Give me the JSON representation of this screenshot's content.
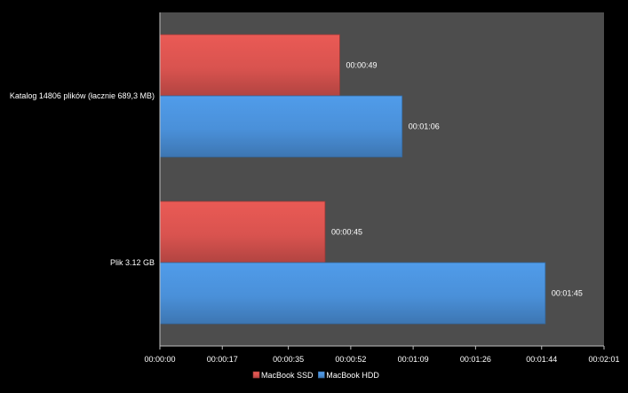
{
  "chart_data": {
    "type": "bar",
    "orientation": "horizontal",
    "categories": [
      "Katalog 14806 plików (łacznie 689,3 MB)",
      "Plik 3.12 GB"
    ],
    "series": [
      {
        "name": "MacBook SSD",
        "values": [
          49,
          45
        ],
        "value_labels": [
          "00:00:49",
          "00:00:45"
        ],
        "color": "#d9534f"
      },
      {
        "name": "MacBook HDD",
        "values": [
          66,
          105
        ],
        "value_labels": [
          "00:01:06",
          "00:01:45"
        ],
        "color": "#4a90d9"
      }
    ],
    "xlim": [
      0,
      121
    ],
    "x_ticks": [
      0,
      17,
      35,
      52,
      69,
      86,
      104,
      121
    ],
    "x_tick_labels": [
      "00:00:00",
      "00:00:17",
      "00:00:35",
      "00:00:52",
      "00:01:09",
      "00:01:26",
      "00:01:44",
      "00:02:01"
    ],
    "x_units": "seconds",
    "plot_background": "#4d4d4d",
    "page_background": "#000000",
    "grid": false,
    "legend_position": "bottom"
  }
}
